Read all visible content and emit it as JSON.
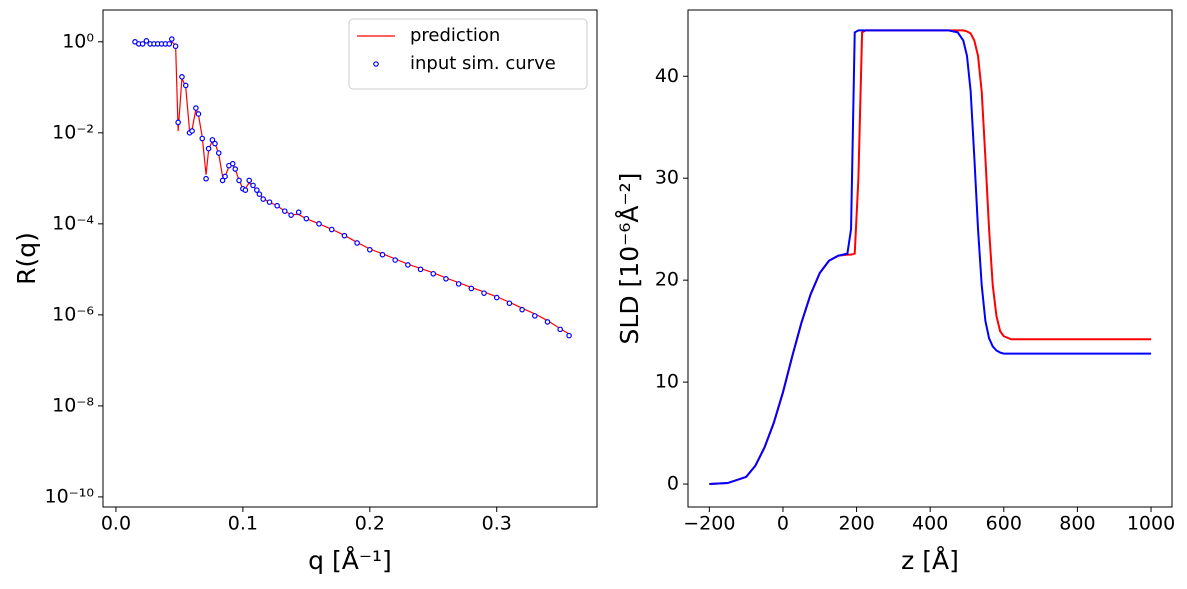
{
  "chart_data": [
    {
      "type": "line",
      "log_y": true,
      "ylabel": "R(q)",
      "xlabel": "q [Å⁻¹]",
      "legend": "upper right",
      "xlim": [
        -0.0102,
        0.379
      ],
      "ylim": [
        6e-11,
        5
      ],
      "xticks": [
        {
          "value": 0,
          "label": "0.0"
        },
        0.1,
        0.2,
        0.3
      ],
      "yticks": [
        {
          "value": 1e-10,
          "label": "10⁻¹⁰"
        },
        {
          "value": 1e-08,
          "label": "10⁻⁸"
        },
        {
          "value": 1e-06,
          "label": "10⁻⁶"
        },
        {
          "value": 0.0001,
          "label": "10⁻⁴"
        },
        {
          "value": 0.01,
          "label": "10⁻²"
        },
        {
          "value": 1,
          "label": "10⁰"
        }
      ],
      "x": [
        0.015,
        0.018,
        0.021,
        0.024,
        0.027,
        0.03,
        0.033,
        0.036,
        0.039,
        0.042,
        0.044,
        0.047,
        0.049,
        0.052,
        0.055,
        0.058,
        0.06,
        0.063,
        0.065,
        0.068,
        0.071,
        0.073,
        0.076,
        0.078,
        0.081,
        0.084,
        0.086,
        0.089,
        0.092,
        0.094,
        0.097,
        0.1,
        0.102,
        0.105,
        0.108,
        0.111,
        0.113,
        0.116,
        0.121,
        0.127,
        0.133,
        0.138,
        0.144,
        0.15,
        0.16,
        0.17,
        0.18,
        0.19,
        0.2,
        0.21,
        0.22,
        0.23,
        0.24,
        0.25,
        0.26,
        0.27,
        0.28,
        0.29,
        0.3,
        0.31,
        0.32,
        0.33,
        0.34,
        0.35,
        0.357
      ],
      "series": [
        {
          "name": "prediction",
          "kind": "line",
          "color": "#ff0000",
          "values": [
            1.0,
            0.95,
            0.95,
            1.0,
            0.95,
            0.95,
            0.92,
            0.92,
            0.92,
            0.92,
            1.0,
            0.85,
            0.011,
            0.16,
            0.1,
            0.011,
            0.012,
            0.033,
            0.025,
            0.008,
            0.0012,
            0.0042,
            0.0068,
            0.006,
            0.0034,
            0.0011,
            0.0011,
            0.0018,
            0.002,
            0.0016,
            0.0009,
            0.0006,
            0.0006,
            0.0008,
            0.00068,
            0.00054,
            0.00046,
            0.00036,
            0.0003,
            0.00025,
            0.00019,
            0.00016,
            0.00016,
            0.00013,
            0.0001,
            7.6e-05,
            5.6e-05,
            3.9e-05,
            2.8e-05,
            2.2e-05,
            1.7e-05,
            1.3e-05,
            1.05e-05,
            8.4e-06,
            6.5e-06,
            5.1e-06,
            4e-06,
            3.2e-06,
            2.5e-06,
            1.9e-06,
            1.4e-06,
            1.05e-06,
            7.5e-07,
            5e-07,
            3.8e-07
          ]
        },
        {
          "name": "input sim. curve",
          "kind": "scatter",
          "color": "#0000ff",
          "values": [
            1.0,
            0.9,
            0.9,
            1.05,
            0.9,
            0.9,
            0.9,
            0.9,
            0.9,
            0.9,
            1.15,
            0.8,
            0.017,
            0.17,
            0.11,
            0.01,
            0.011,
            0.035,
            0.026,
            0.0075,
            0.00098,
            0.0045,
            0.007,
            0.0058,
            0.0036,
            0.0009,
            0.0011,
            0.0019,
            0.0021,
            0.0016,
            0.0009,
            0.00059,
            0.00055,
            0.0009,
            0.0007,
            0.00055,
            0.00045,
            0.00035,
            0.0003,
            0.00025,
            0.00019,
            0.000155,
            0.00018,
            0.00013,
            0.0001,
            7.5e-05,
            5.5e-05,
            3.8e-05,
            2.7e-05,
            2.1e-05,
            1.6e-05,
            1.25e-05,
            1e-05,
            8e-06,
            6.2e-06,
            4.8e-06,
            3.8e-06,
            3e-06,
            2.4e-06,
            1.8e-06,
            1.3e-06,
            9.5e-07,
            7e-07,
            4.8e-07,
            3.5e-07
          ]
        }
      ]
    },
    {
      "type": "line",
      "log_y": false,
      "ylabel": "SLD [10⁻⁶Å⁻²]",
      "xlabel": "z [Å]",
      "xlim": [
        -258,
        1057
      ],
      "ylim": [
        -2.25,
        46.5
      ],
      "xticks": [
        {
          "value": -200,
          "label": "−200"
        },
        0,
        200,
        400,
        600,
        800,
        1000
      ],
      "yticks": [
        0,
        10,
        20,
        30,
        40
      ],
      "x": [
        -200,
        -150,
        -100,
        -75,
        -50,
        -25,
        0,
        25,
        50,
        75,
        100,
        125,
        150,
        175,
        185,
        195,
        205,
        215,
        225,
        250,
        300,
        350,
        400,
        450,
        475,
        490,
        500,
        510,
        520,
        530,
        540,
        550,
        560,
        570,
        580,
        590,
        600,
        620,
        650,
        700,
        800,
        900,
        1000
      ],
      "series": [
        {
          "kind": "line",
          "color": "#ff0000",
          "values": [
            0,
            0.1,
            0.7,
            1.8,
            3.6,
            6.0,
            9.0,
            12.5,
            15.8,
            18.6,
            20.7,
            21.9,
            22.4,
            22.5,
            22.5,
            22.6,
            30,
            44.3,
            44.5,
            44.5,
            44.5,
            44.5,
            44.5,
            44.5,
            44.5,
            44.5,
            44.4,
            44.2,
            43.5,
            42,
            38.5,
            32,
            25,
            19.5,
            16.5,
            15,
            14.5,
            14.2,
            14.2,
            14.2,
            14.2,
            14.2,
            14.2
          ]
        },
        {
          "kind": "line",
          "color": "#0000ff",
          "values": [
            0,
            0.1,
            0.7,
            1.8,
            3.6,
            6.0,
            9.0,
            12.5,
            15.8,
            18.6,
            20.7,
            21.9,
            22.4,
            22.6,
            25,
            44.3,
            44.5,
            44.5,
            44.5,
            44.5,
            44.5,
            44.5,
            44.5,
            44.5,
            44.3,
            43.5,
            42,
            38.5,
            32,
            25,
            19.5,
            16,
            14.3,
            13.5,
            13.1,
            12.9,
            12.8,
            12.8,
            12.8,
            12.8,
            12.8,
            12.8,
            12.8
          ]
        }
      ]
    }
  ]
}
